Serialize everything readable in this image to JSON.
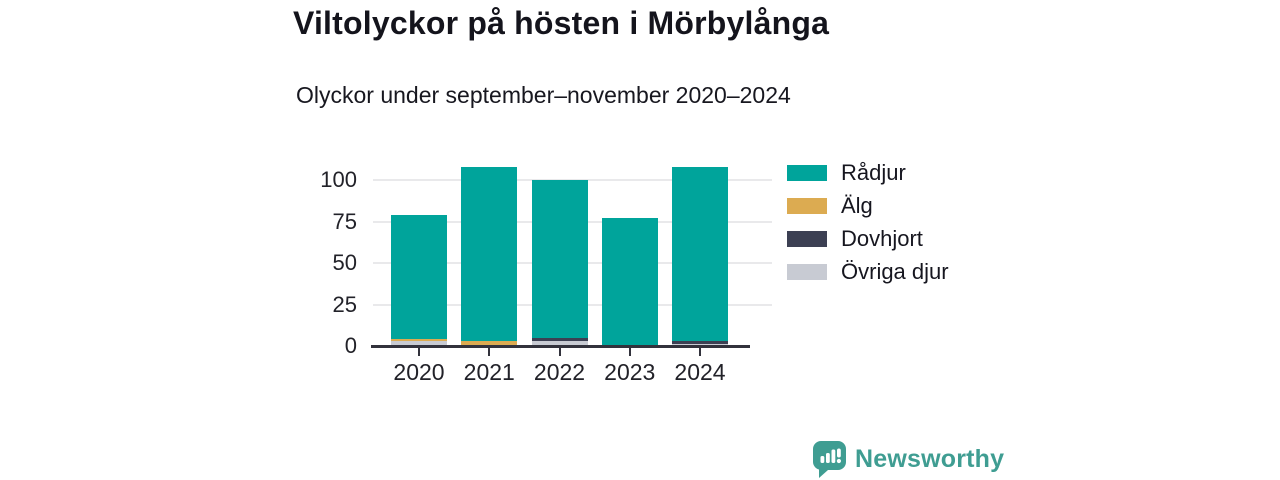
{
  "header": {
    "title": "Viltolyckor på hösten i Mörbylånga",
    "subtitle": "Olyckor under september–november 2020–2024"
  },
  "chart_data": {
    "type": "bar",
    "stacked": true,
    "title": "Viltolyckor på hösten i Mörbylånga",
    "subtitle": "Olyckor under september–november 2020–2024",
    "categories": [
      "2020",
      "2021",
      "2022",
      "2023",
      "2024"
    ],
    "series": [
      {
        "name": "Rådjur",
        "color": "#00a49b",
        "values": [
          75,
          105,
          95,
          77,
          105
        ]
      },
      {
        "name": "Älg",
        "color": "#dcab51",
        "values": [
          1,
          3,
          0,
          0,
          0
        ]
      },
      {
        "name": "Dovhjort",
        "color": "#3c4053",
        "values": [
          0,
          0,
          2,
          0,
          2
        ]
      },
      {
        "name": "Övriga djur",
        "color": "#c8cbd3",
        "values": [
          3,
          0,
          3,
          0,
          1
        ]
      }
    ],
    "totals": [
      79,
      108,
      100,
      77,
      108
    ],
    "stack_order_bottom_to_top": [
      "Övriga djur",
      "Dovhjort",
      "Älg",
      "Rådjur"
    ],
    "xlabel": "",
    "ylabel": "",
    "yticks": [
      0,
      25,
      50,
      75,
      100
    ],
    "ylim": [
      0,
      113
    ],
    "grid": "horizontal",
    "legend_position": "right"
  },
  "colors": {
    "grid": "#e9e9eb",
    "axis": "#32323c",
    "text": "#17171f"
  },
  "footer": {
    "brand": "Newsworthy",
    "brand_color": "#3f9d92"
  }
}
